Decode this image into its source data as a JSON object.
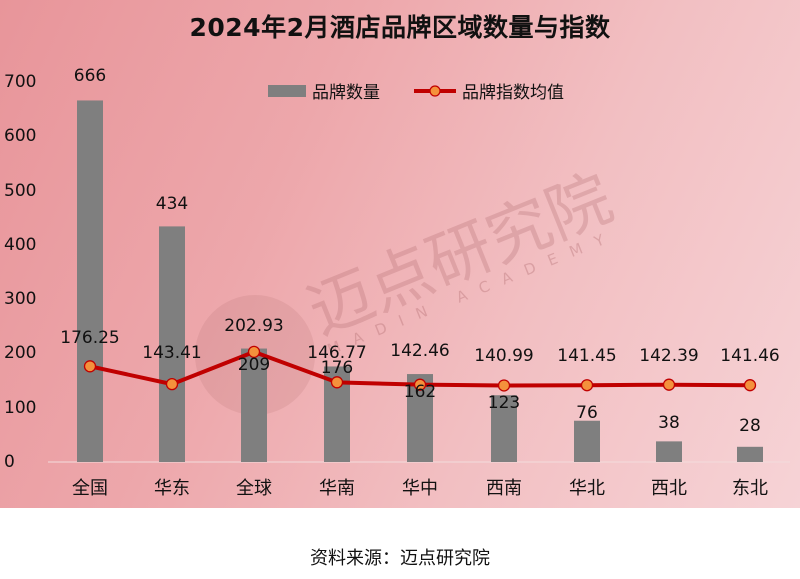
{
  "chart": {
    "title": "2024年2月酒店品牌区域数量与指数",
    "legend": {
      "bar": "品牌数量",
      "line": "品牌指数均值"
    },
    "yticks": [
      "700",
      "600",
      "500",
      "400",
      "300",
      "200",
      "100",
      "0"
    ],
    "watermark": {
      "cn": "迈点研究院",
      "en": "MADIN ACADEMY"
    },
    "footer": "资料来源：迈点研究院",
    "colors": {
      "bar": "#7f7f7f",
      "line": "#c00000",
      "marker": "#f4913c",
      "marker_edge": "#c00000"
    }
  },
  "chart_data": {
    "type": "bar",
    "title": "2024年2月酒店品牌区域数量与指数",
    "xlabel": "",
    "ylabel": "",
    "ylim": [
      0,
      700
    ],
    "grid": false,
    "legend_position": "top",
    "categories": [
      "全国",
      "华东",
      "全球",
      "华南",
      "华中",
      "西南",
      "华北",
      "西北",
      "东北"
    ],
    "series": [
      {
        "name": "品牌数量",
        "type": "bar",
        "values": [
          666,
          434,
          209,
          176,
          162,
          123,
          76,
          38,
          28
        ]
      },
      {
        "name": "品牌指数均值",
        "type": "line",
        "values": [
          176.25,
          143.41,
          202.93,
          146.77,
          142.46,
          140.99,
          141.45,
          142.39,
          141.46
        ]
      }
    ]
  }
}
